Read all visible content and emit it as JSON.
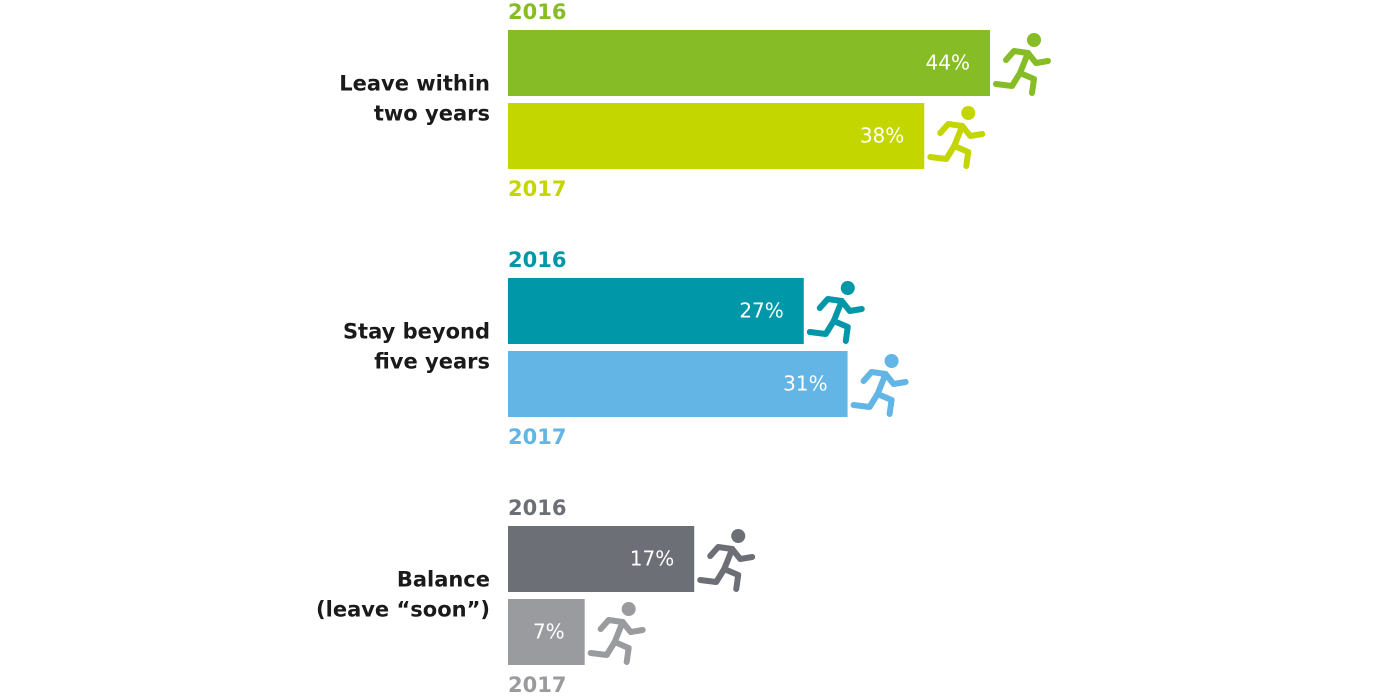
{
  "chart_data": {
    "type": "bar",
    "categories": [
      [
        "Leave within",
        "two years"
      ],
      [
        "Stay beyond",
        "five years"
      ],
      [
        "Balance",
        "(leave “soon”)"
      ]
    ],
    "series": [
      {
        "name": "2016",
        "colors": [
          "#86bc25",
          "#0097a9",
          "#6d6f76"
        ],
        "values": [
          44,
          27,
          17
        ],
        "value_labels": [
          "44%",
          "27%",
          "17%"
        ]
      },
      {
        "name": "2017",
        "colors": [
          "#c4d600",
          "#62b5e5",
          "#9a9b9e"
        ],
        "values": [
          38,
          31,
          7
        ],
        "value_labels": [
          "38%",
          "31%",
          "7%"
        ]
      }
    ]
  }
}
